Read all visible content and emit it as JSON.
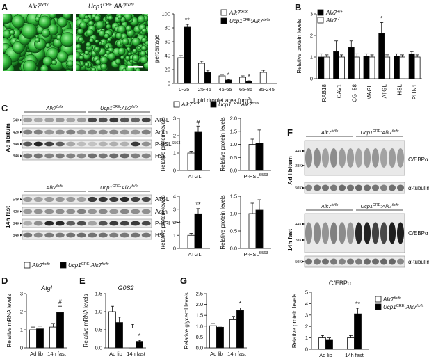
{
  "figure": {
    "panel_labels": {
      "A": "A",
      "B": "B",
      "C": "C",
      "D": "D",
      "E": "E",
      "F": "F",
      "G": "G"
    },
    "genotypes": {
      "ctrl": "Alk7",
      "ctrl_sup": "fx/fx",
      "ko_cre": "Ucp1",
      "ko_cre_sup": "CRE",
      "ko_sep": ":",
      "ko": "Alk7",
      "ko_sup": "fx/fx",
      "wt_sup": "+/+",
      "null_sup": "-/-"
    },
    "conditions": {
      "ad_libitum": "Ad libitum",
      "fast": "14h fast"
    },
    "panel_A": {
      "scale_bar": true
    },
    "panel_C_blots": {
      "ad_lib_bands": [
        "ATGL",
        "Actin",
        "P-HSL",
        "HSL"
      ],
      "fast_bands": [
        "ATGL",
        "Actin",
        "P-HSL",
        "HSL"
      ],
      "phsl_sup": "S563",
      "markers_top": [
        "54K",
        "42K",
        "84K",
        "84K"
      ],
      "markers_bottom": [
        "54K",
        "42K",
        "84K",
        "84K"
      ]
    },
    "panel_F_blots": {
      "bands": [
        "C/EBPα",
        "α-tubulin"
      ],
      "markers_top": [
        "44K",
        "28K",
        "50K"
      ],
      "markers_bottom": [
        "44K",
        "28K",
        "50K"
      ]
    }
  },
  "chart_data": [
    {
      "id": "A",
      "type": "bar",
      "xlabel": "Lipid droplet area (µm",
      "xlabel_sup": "2",
      "xlabel_end": ")",
      "ylabel": "percentage",
      "ylim": [
        0,
        100
      ],
      "yticks": [
        0,
        20,
        40,
        60,
        80,
        100
      ],
      "categories": [
        "0-25",
        "25-45",
        "45-65",
        "65-85",
        "85-245"
      ],
      "series": [
        {
          "name": "ctrl",
          "fill": "#ffffff",
          "values": [
            37,
            29,
            11,
            9,
            16
          ],
          "errors": [
            3,
            3,
            2,
            2,
            3
          ]
        },
        {
          "name": "ko",
          "fill": "#000000",
          "values": [
            81,
            16,
            5,
            3,
            0
          ],
          "errors": [
            4,
            3,
            1,
            1,
            0
          ]
        }
      ],
      "annotations": [
        {
          "category": 0,
          "series": 1,
          "text": "**"
        },
        {
          "category": 2,
          "series": 1,
          "text": "*"
        },
        {
          "category": 3,
          "series": 1,
          "text": "*"
        }
      ]
    },
    {
      "id": "B",
      "type": "bar",
      "ylabel": "Relative protein levels",
      "ylim": [
        0,
        3
      ],
      "yticks": [
        0,
        1,
        2,
        3
      ],
      "categories": [
        "RAB18",
        "CAV1",
        "CGI-58",
        "MAGL",
        "ATGL",
        "HSL",
        "PLIN1"
      ],
      "series": [
        {
          "name": "wt",
          "fill": "#000000",
          "values": [
            1.0,
            1.25,
            1.45,
            1.05,
            2.1,
            1.05,
            1.15
          ],
          "errors": [
            0.15,
            0.5,
            0.3,
            0.1,
            0.5,
            0.1,
            0.1
          ]
        },
        {
          "name": "null",
          "fill": "#ffffff",
          "values": [
            1.0,
            1.0,
            1.0,
            1.0,
            1.0,
            1.0,
            1.0
          ],
          "errors": [
            0.1,
            0.1,
            0.15,
            0.1,
            0.1,
            0.1,
            0.1
          ]
        }
      ],
      "annotations": [
        {
          "category": 4,
          "series": 0,
          "text": "*"
        }
      ]
    },
    {
      "id": "C1",
      "type": "bar",
      "ylabel": "Relative protein levels",
      "ylim": [
        0,
        3
      ],
      "yticks": [
        0,
        1,
        2,
        3
      ],
      "categories": [
        "ATGL"
      ],
      "xsup": "",
      "series": [
        {
          "name": "ctrl",
          "fill": "#ffffff",
          "values": [
            1.0
          ],
          "errors": [
            0.1
          ]
        },
        {
          "name": "ko",
          "fill": "#000000",
          "values": [
            2.2
          ],
          "errors": [
            0.35
          ]
        }
      ],
      "annotations": [
        {
          "category": 0,
          "series": 1,
          "text": "#"
        }
      ]
    },
    {
      "id": "C2",
      "type": "bar",
      "ylabel": "Relative protein levels",
      "ylim": [
        0,
        2.0
      ],
      "yticks": [
        0.0,
        0.5,
        1.0,
        1.5,
        2.0
      ],
      "categories": [
        "P-HSL"
      ],
      "xsup": "S563",
      "series": [
        {
          "name": "ctrl",
          "fill": "#ffffff",
          "values": [
            1.0
          ],
          "errors": [
            0.2
          ]
        },
        {
          "name": "ko",
          "fill": "#000000",
          "values": [
            1.05
          ],
          "errors": [
            0.5
          ]
        }
      ],
      "annotations": []
    },
    {
      "id": "C3",
      "type": "bar",
      "ylabel": "Relative protein levels",
      "ylim": [
        0,
        4
      ],
      "yticks": [
        0,
        1,
        2,
        3,
        4
      ],
      "categories": [
        "ATGL"
      ],
      "xsup": "",
      "series": [
        {
          "name": "ctrl",
          "fill": "#ffffff",
          "values": [
            1.0
          ],
          "errors": [
            0.15
          ]
        },
        {
          "name": "ko",
          "fill": "#000000",
          "values": [
            2.65
          ],
          "errors": [
            0.4
          ]
        }
      ],
      "annotations": [
        {
          "category": 0,
          "series": 1,
          "text": "**"
        }
      ]
    },
    {
      "id": "C4",
      "type": "bar",
      "ylabel": "Relative protein levels",
      "ylim": [
        0,
        1.5
      ],
      "yticks": [
        0.0,
        0.5,
        1.0,
        1.5
      ],
      "categories": [
        "P-HSL"
      ],
      "xsup": "S563",
      "series": [
        {
          "name": "ctrl",
          "fill": "#ffffff",
          "values": [
            1.0
          ],
          "errors": [
            0.3
          ]
        },
        {
          "name": "ko",
          "fill": "#000000",
          "values": [
            1.1
          ],
          "errors": [
            0.3
          ]
        }
      ],
      "annotations": []
    },
    {
      "id": "D",
      "type": "bar",
      "title": "Atgl",
      "ylabel": "Relative mRNA levels",
      "ylim": [
        0,
        3
      ],
      "yticks": [
        0,
        1,
        2,
        3
      ],
      "categories": [
        "Ad lib",
        "14h fast"
      ],
      "series": [
        {
          "name": "ctrl",
          "fill": "#ffffff",
          "values": [
            1.0,
            1.15
          ],
          "errors": [
            0.15,
            0.2
          ]
        },
        {
          "name": "ko",
          "fill": "#000000",
          "values": [
            1.05,
            1.95
          ],
          "errors": [
            0.15,
            0.35
          ]
        }
      ],
      "annotations": [
        {
          "category": 1,
          "series": 1,
          "text": "#"
        }
      ]
    },
    {
      "id": "E",
      "type": "bar",
      "title": "G0S2",
      "ylabel": "Relative mRNA levels",
      "ylim": [
        0,
        1.5
      ],
      "yticks": [
        0.0,
        0.5,
        1.0,
        1.5
      ],
      "categories": [
        "Ad lib",
        "14h fast"
      ],
      "series": [
        {
          "name": "ctrl",
          "fill": "#ffffff",
          "values": [
            1.0,
            0.55
          ],
          "errors": [
            0.15,
            0.1
          ]
        },
        {
          "name": "ko",
          "fill": "#000000",
          "values": [
            0.7,
            0.18
          ],
          "errors": [
            0.15,
            0.03
          ]
        }
      ],
      "annotations": [
        {
          "category": 1,
          "series": 1,
          "text": "*"
        }
      ]
    },
    {
      "id": "G",
      "type": "bar",
      "ylabel": "Relative glycerol levels",
      "ylim": [
        0,
        2.5
      ],
      "yticks": [
        0.0,
        0.5,
        1.0,
        1.5,
        2.0,
        2.5
      ],
      "categories": [
        "Ad lib",
        "14h fast"
      ],
      "series": [
        {
          "name": "ctrl",
          "fill": "#ffffff",
          "values": [
            1.02,
            1.3
          ],
          "errors": [
            0.1,
            0.15
          ]
        },
        {
          "name": "ko",
          "fill": "#000000",
          "values": [
            0.95,
            1.72
          ],
          "errors": [
            0.05,
            0.12
          ]
        }
      ],
      "annotations": [
        {
          "category": 1,
          "series": 1,
          "text": "*"
        }
      ]
    },
    {
      "id": "F",
      "type": "bar",
      "title": "C/EBPα",
      "ylabel": "Relative protein levels",
      "ylim": [
        0,
        5
      ],
      "yticks": [
        0,
        1,
        2,
        3,
        4,
        5
      ],
      "categories": [
        "Ad lib",
        "14h fast"
      ],
      "series": [
        {
          "name": "ctrl",
          "fill": "#ffffff",
          "values": [
            1.0,
            1.0
          ],
          "errors": [
            0.2,
            0.2
          ]
        },
        {
          "name": "ko",
          "fill": "#000000",
          "values": [
            0.85,
            3.1
          ],
          "errors": [
            0.15,
            0.5
          ]
        }
      ],
      "annotations": [
        {
          "category": 1,
          "series": 1,
          "text": "**"
        }
      ]
    }
  ]
}
